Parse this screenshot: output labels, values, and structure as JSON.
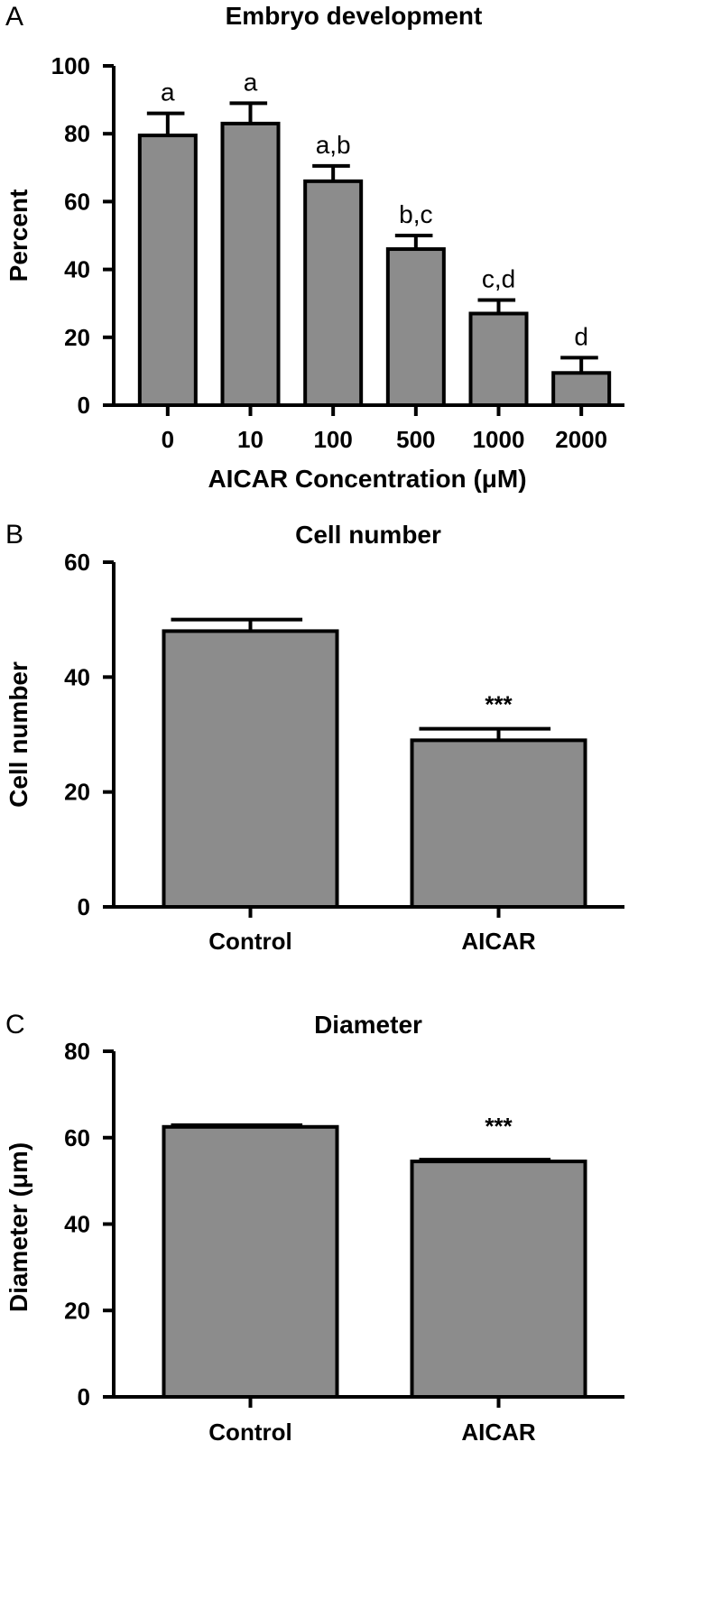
{
  "chart_data": [
    {
      "panel": "A",
      "type": "bar",
      "title": "Embryo development",
      "xlabel": "AICAR Concentration (μM)",
      "ylabel": "Percent",
      "ylim": [
        0,
        100
      ],
      "yticks": [
        "0",
        "20",
        "40",
        "60",
        "80",
        "100"
      ],
      "categories": [
        "0",
        "10",
        "100",
        "500",
        "1000",
        "2000"
      ],
      "values": [
        79.5,
        83,
        66,
        46,
        27,
        9.5
      ],
      "errors": [
        6.5,
        6,
        4.5,
        4,
        4,
        4.5
      ],
      "annotations": [
        "a",
        "a",
        "a,b",
        "b,c",
        "c,d",
        "d"
      ],
      "grid": false,
      "bar_color": "#8c8c8c"
    },
    {
      "panel": "B",
      "type": "bar",
      "title": "Cell number",
      "xlabel": "",
      "ylabel": "Cell number",
      "ylim": [
        0,
        60
      ],
      "yticks": [
        "0",
        "20",
        "40",
        "60"
      ],
      "categories": [
        "Control",
        "AICAR"
      ],
      "values": [
        48,
        29
      ],
      "errors": [
        2,
        2
      ],
      "annotations": [
        "",
        "***"
      ],
      "grid": false,
      "bar_color": "#8c8c8c"
    },
    {
      "panel": "C",
      "type": "bar",
      "title": "Diameter",
      "xlabel": "",
      "ylabel": "Diameter (μm)",
      "ylim": [
        0,
        80
      ],
      "yticks": [
        "0",
        "20",
        "40",
        "60",
        "80"
      ],
      "categories": [
        "Control",
        "AICAR"
      ],
      "values": [
        62.5,
        54.5
      ],
      "errors": [
        0.4,
        0.4
      ],
      "annotations": [
        "",
        "***"
      ],
      "grid": false,
      "bar_color": "#8c8c8c"
    }
  ]
}
